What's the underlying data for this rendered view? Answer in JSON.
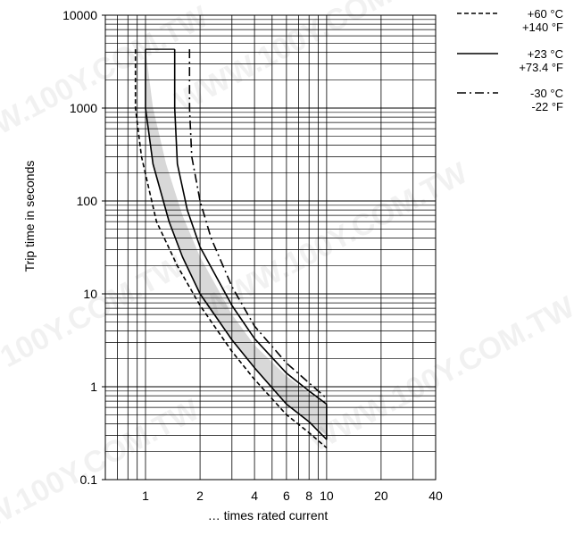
{
  "chart_data": {
    "type": "line",
    "ylabel": "Trip time in seconds",
    "xlabel": "… times rated current",
    "x_scale": "log",
    "y_scale": "log",
    "xlim": [
      0.6,
      40
    ],
    "ylim": [
      0.1,
      10000
    ],
    "x_ticks": [
      {
        "value": 1,
        "label": "1"
      },
      {
        "value": 2,
        "label": "2"
      },
      {
        "value": 4,
        "label": "4"
      },
      {
        "value": 6,
        "label": "6"
      },
      {
        "value": 8,
        "label": "8"
      },
      {
        "value": 10,
        "label": "10"
      },
      {
        "value": 20,
        "label": "20"
      },
      {
        "value": 40,
        "label": "40"
      }
    ],
    "y_ticks": [
      {
        "value": 0.1,
        "label": "0.1"
      },
      {
        "value": 1,
        "label": "1"
      },
      {
        "value": 10,
        "label": "10"
      },
      {
        "value": 100,
        "label": "100"
      },
      {
        "value": 1000,
        "label": "1000"
      },
      {
        "value": 10000,
        "label": "10000"
      }
    ],
    "grid": true,
    "legend_position": "top-right",
    "legend": [
      {
        "style": "dashed",
        "line1": "+60 °C",
        "line2": "+140 °F"
      },
      {
        "style": "solid",
        "line1": "+23 °C",
        "line2": "+73.4 °F"
      },
      {
        "style": "dashdot",
        "line1": "-30 °C",
        "line2": "-22 °F"
      }
    ],
    "band": {
      "fill": "#d8d8d8",
      "upper": [
        [
          1.0,
          4300
        ],
        [
          1.1,
          1000
        ],
        [
          1.3,
          250
        ],
        [
          1.6,
          70
        ],
        [
          2,
          25
        ],
        [
          3,
          6
        ],
        [
          4,
          2.8
        ],
        [
          6,
          1.3
        ],
        [
          8,
          0.85
        ],
        [
          10,
          0.65
        ]
      ],
      "lower": [
        [
          1.0,
          4300
        ],
        [
          1.0,
          1000
        ],
        [
          1.1,
          250
        ],
        [
          1.35,
          60
        ],
        [
          1.6,
          25
        ],
        [
          2,
          10
        ],
        [
          3,
          3.2
        ],
        [
          4,
          1.6
        ],
        [
          6,
          0.65
        ],
        [
          8,
          0.42
        ],
        [
          10,
          0.3
        ]
      ]
    },
    "series": [
      {
        "style": "dashed",
        "points": [
          [
            0.88,
            4300
          ],
          [
            0.88,
            1000
          ],
          [
            0.95,
            300
          ],
          [
            1.15,
            60
          ],
          [
            1.5,
            20
          ],
          [
            2,
            7.5
          ],
          [
            3,
            2.4
          ],
          [
            4,
            1.2
          ],
          [
            6,
            0.5
          ],
          [
            8,
            0.32
          ],
          [
            10,
            0.22
          ]
        ]
      },
      {
        "style": "solid",
        "points": [
          [
            1.0,
            4300
          ],
          [
            1.0,
            1000
          ],
          [
            1.1,
            250
          ],
          [
            1.35,
            60
          ],
          [
            1.6,
            25
          ],
          [
            2,
            10
          ],
          [
            3,
            3.2
          ],
          [
            4,
            1.6
          ],
          [
            6,
            0.65
          ],
          [
            8,
            0.42
          ],
          [
            10,
            0.27
          ]
        ]
      },
      {
        "style": "solid",
        "points": [
          [
            1.45,
            4300
          ],
          [
            1.45,
            1000
          ],
          [
            1.5,
            250
          ],
          [
            1.7,
            80
          ],
          [
            2,
            32
          ],
          [
            3,
            7.5
          ],
          [
            4,
            3.3
          ],
          [
            6,
            1.4
          ],
          [
            8,
            0.9
          ],
          [
            10,
            0.65
          ]
        ]
      },
      {
        "style": "dashdot",
        "points": [
          [
            1.75,
            4300
          ],
          [
            1.75,
            1000
          ],
          [
            1.8,
            300
          ],
          [
            2,
            100
          ],
          [
            2.3,
            40
          ],
          [
            3,
            12
          ],
          [
            4,
            4.5
          ],
          [
            6,
            1.8
          ],
          [
            8,
            1.1
          ],
          [
            10,
            0.75
          ]
        ]
      }
    ],
    "colors": {
      "line": "#000000",
      "grid": "#000000",
      "band": "#d8d8d8"
    }
  }
}
